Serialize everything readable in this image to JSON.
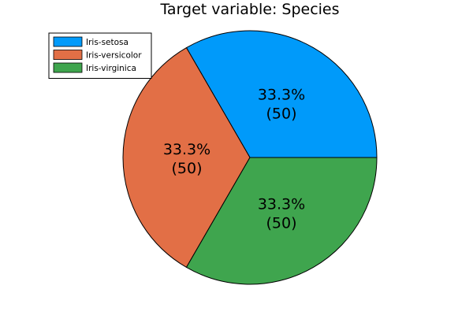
{
  "chart_data": {
    "type": "pie",
    "title": "Target variable: Species",
    "categories": [
      "Iris-setosa",
      "Iris-versicolor",
      "Iris-virginica"
    ],
    "values": [
      50,
      50,
      50
    ],
    "percent_labels": [
      "33.3%",
      "33.3%",
      "33.3%"
    ],
    "count_labels": [
      "(50)",
      "(50)",
      "(50)"
    ],
    "colors": [
      "#009AFA",
      "#E26F46",
      "#3FA54E"
    ],
    "legend_position": "top-left"
  }
}
